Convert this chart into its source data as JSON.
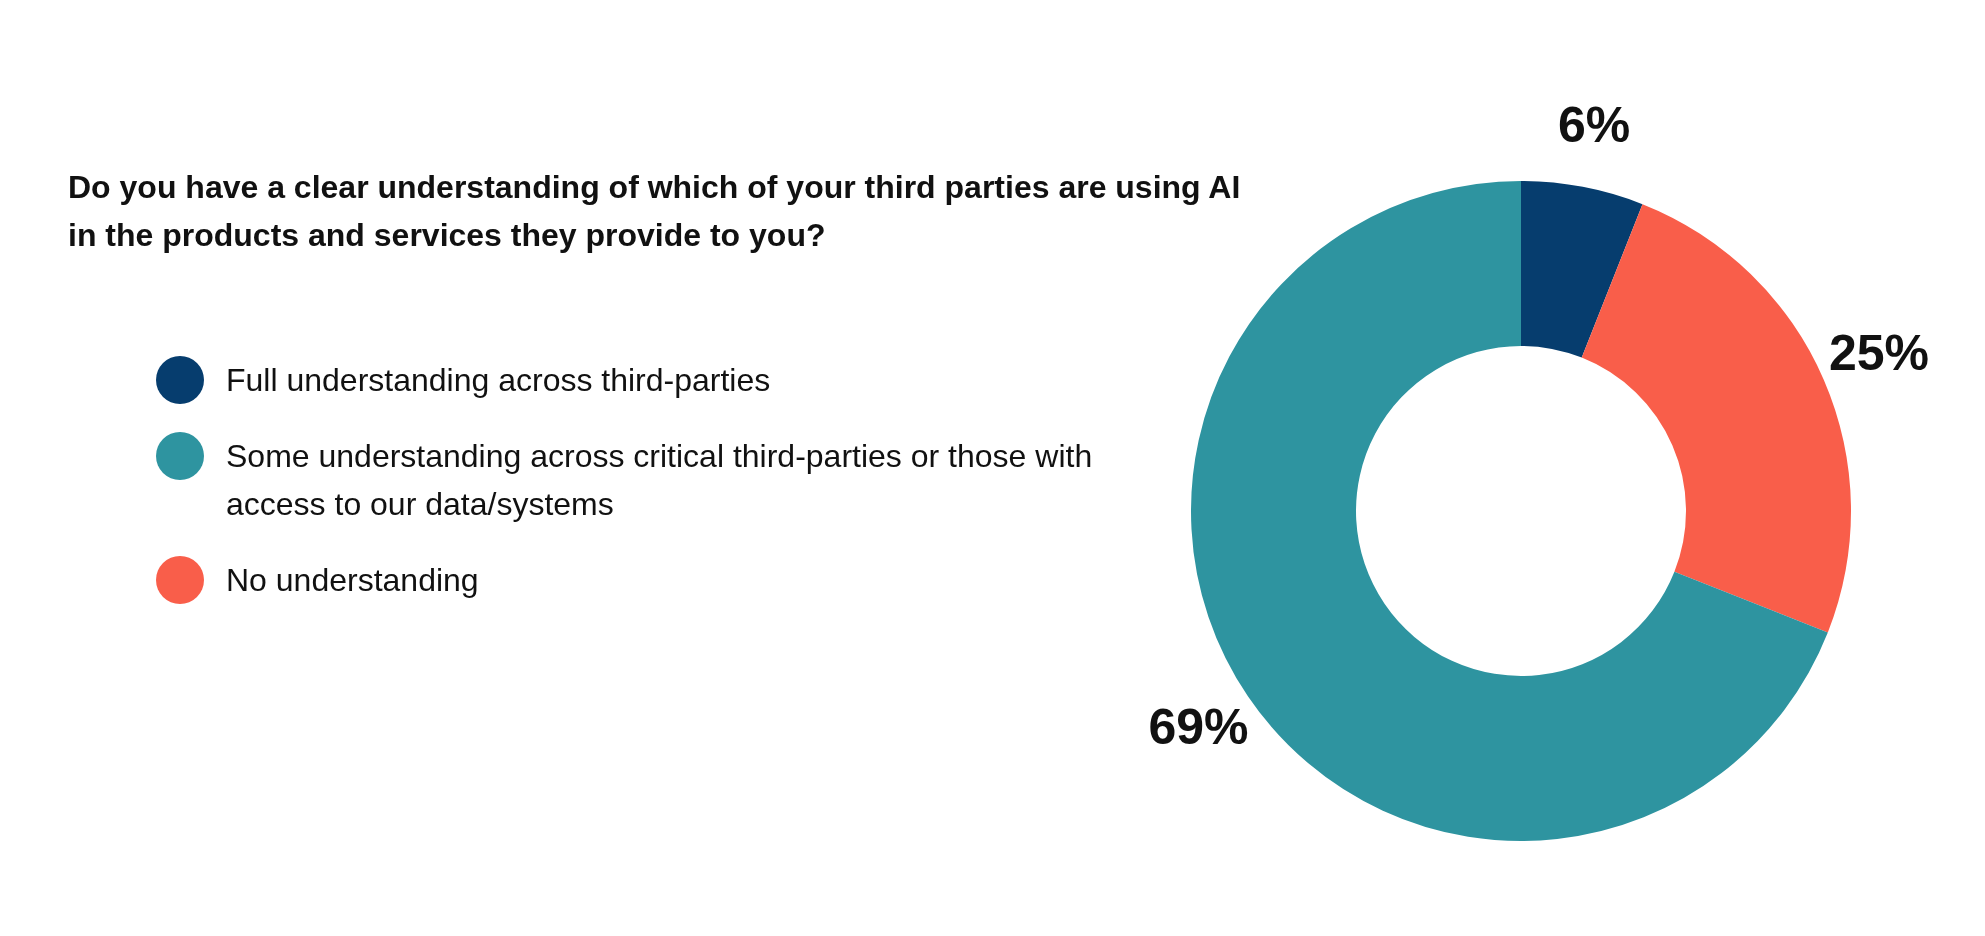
{
  "chart_data": {
    "type": "donut",
    "title": "Do you have a clear understanding of which of your third parties are using AI in the products and services they provide to you?",
    "categories": [
      "Full understanding across third-parties",
      "No understanding",
      "Some understanding across critical third-parties or those with access to our data/systems"
    ],
    "values": [
      6,
      25,
      69
    ],
    "colors": [
      "#063d6e",
      "#f95e4a",
      "#2e94a0"
    ],
    "value_labels": [
      "6%",
      "25%",
      "69%"
    ],
    "legend": "left"
  }
}
